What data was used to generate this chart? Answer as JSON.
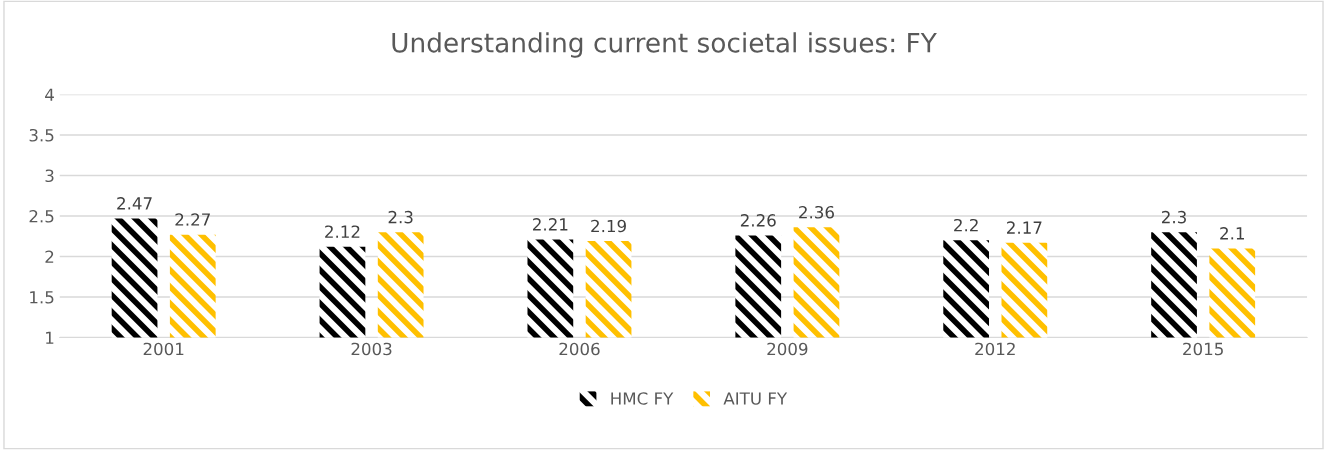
{
  "chart_data": {
    "type": "bar",
    "title": "Understanding current societal issues: FY",
    "categories": [
      "2001",
      "2003",
      "2006",
      "2009",
      "2012",
      "2015"
    ],
    "series": [
      {
        "name": "HMC FY",
        "color": "#000000",
        "values": [
          2.47,
          2.12,
          2.21,
          2.26,
          2.2,
          2.3
        ]
      },
      {
        "name": "AITU FY",
        "color": "#ffc000",
        "values": [
          2.27,
          2.3,
          2.19,
          2.36,
          2.17,
          2.1
        ]
      }
    ],
    "ylim": [
      1,
      4
    ],
    "yticks": [
      1,
      1.5,
      2,
      2.5,
      3,
      3.5,
      4
    ],
    "grid": "y",
    "legend": "bottom",
    "data_labels": true
  }
}
